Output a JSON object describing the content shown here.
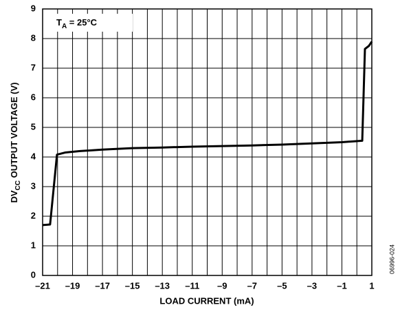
{
  "chart_data": {
    "type": "line",
    "xlabel": "LOAD CURRENT (mA)",
    "ylabel": {
      "main": "DV",
      "sub": "CC",
      "rest": " OUTPUT VOLTAGE (V)"
    },
    "annotation": {
      "main": "T",
      "sub": "A",
      "rest": " = 25°C"
    },
    "figure_code": "06996-024",
    "x": [
      -21,
      -20.5,
      -20.04,
      -19.5,
      -18.5,
      -17,
      -15,
      -13,
      -11,
      -9,
      -7,
      -5,
      -3,
      -1,
      0.36,
      0.54,
      0.8,
      1
    ],
    "values": [
      1.7,
      1.72,
      4.08,
      4.15,
      4.2,
      4.25,
      4.3,
      4.32,
      4.35,
      4.37,
      4.39,
      4.42,
      4.46,
      4.5,
      4.55,
      7.65,
      7.75,
      7.9
    ],
    "color": "#000000",
    "xlim": [
      -21,
      1
    ],
    "ylim": [
      0,
      9
    ],
    "xticks": [
      {
        "value": -21,
        "label": "–21"
      },
      {
        "value": -19,
        "label": "–19"
      },
      {
        "value": -17,
        "label": "–17"
      },
      {
        "value": -15,
        "label": "–15"
      },
      {
        "value": -13,
        "label": "–13"
      },
      {
        "value": -11,
        "label": "–11"
      },
      {
        "value": -9,
        "label": "–9"
      },
      {
        "value": -7,
        "label": "–7"
      },
      {
        "value": -5,
        "label": "–5"
      },
      {
        "value": -3,
        "label": "–3"
      },
      {
        "value": -1,
        "label": "–1"
      },
      1
    ],
    "xminor_ticks": [
      -20,
      -18,
      -16,
      -14,
      -12,
      -10,
      -8,
      -6,
      -4,
      -2,
      0
    ],
    "yticks": [
      0,
      1,
      2,
      3,
      4,
      5,
      6,
      7,
      8,
      9
    ],
    "grid": true
  }
}
